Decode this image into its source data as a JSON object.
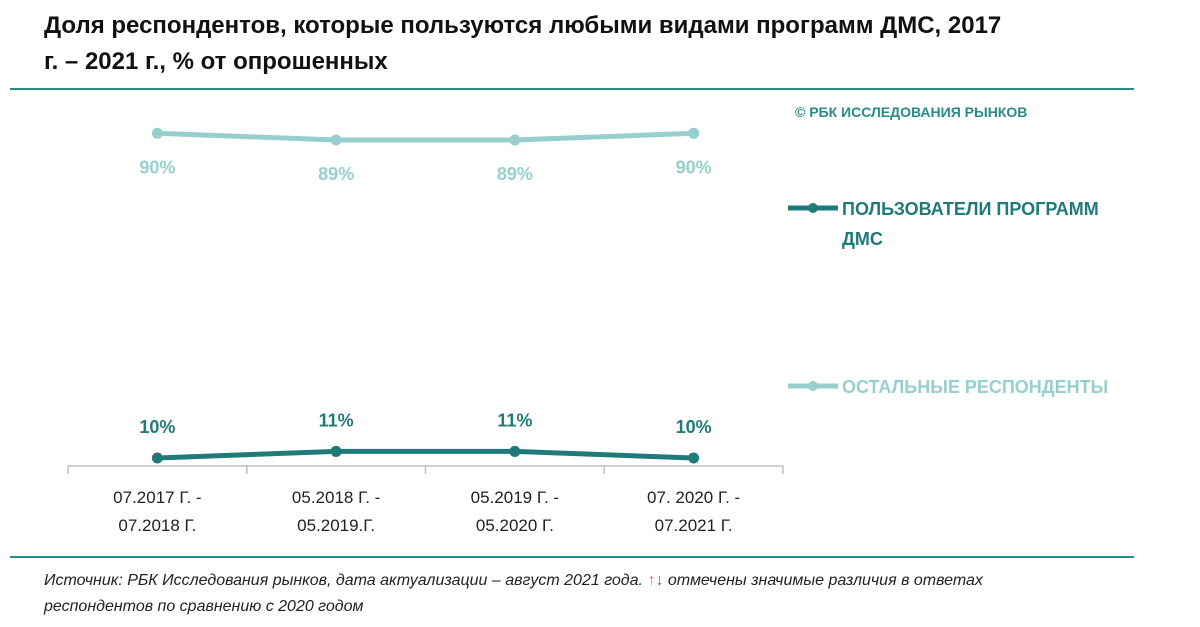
{
  "title": "Доля респондентов, которые пользуются любыми видами программ ДМС, 2017 г. – 2021 г., % от опрошенных",
  "copyright": "© РБК ИССЛЕДОВАНИЯ РЫНКОВ",
  "source": {
    "text": "Источник: РБК Исследования рынков, дата актуализации – август 2021 года.",
    "arrow_up": "↑",
    "arrow_down": "↓",
    "text_after": "отмечены значимые различия в ответах респондентов по сравнению с 2020 годом"
  },
  "colors": {
    "users": "#207a7a",
    "others": "#97cfcf",
    "rule": "#2a8a8a",
    "axis": "#bfbfbf"
  },
  "chart_data": {
    "type": "line",
    "categories": [
      "07.2017 Г. - 07.2018 Г.",
      "05.2018 Г. - 05.2019.Г.",
      "05.2019 Г. - 05.2020 Г.",
      "07. 2020 Г. - 07.2021 Г."
    ],
    "category_lines": [
      [
        "07.2017 Г. -",
        "07.2018 Г."
      ],
      [
        "05.2018 Г. -",
        "05.2019.Г."
      ],
      [
        "05.2019 Г. -",
        "05.2020 Г."
      ],
      [
        "07. 2020 Г. -",
        "07.2021 Г."
      ]
    ],
    "series": [
      {
        "name": "ПОЛЬЗОВАТЕЛИ ПРОГРАММ ДМС",
        "values": [
          10,
          11,
          11,
          10
        ],
        "labels": [
          "10%",
          "11%",
          "11%",
          "10%"
        ],
        "color": "#207a7a"
      },
      {
        "name": "ОСТАЛЬНЫЕ РЕСПОНДЕНТЫ",
        "values": [
          90,
          89,
          89,
          90
        ],
        "labels": [
          "90%",
          "89%",
          "89%",
          "90%"
        ],
        "color": "#97cfcf"
      }
    ],
    "ylim": [
      0,
      100
    ],
    "grid": false,
    "legend": "right"
  }
}
